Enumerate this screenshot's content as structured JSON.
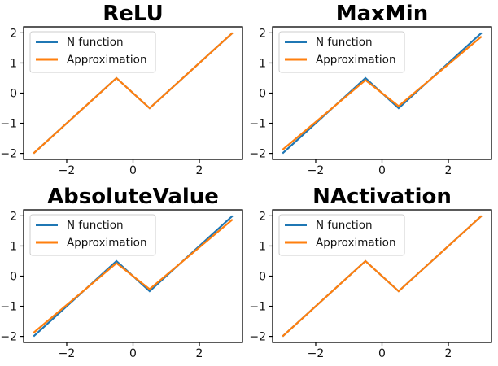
{
  "figure": {
    "background": "#ffffff",
    "rows": 2,
    "cols": 2
  },
  "colors": {
    "n_function": "#1f77b4",
    "approximation": "#ff7f0e",
    "axis": "#000000",
    "tick_text": "#111111",
    "legend_border": "#cccccc",
    "legend_fill": "rgba(255,255,255,0.8)"
  },
  "chart_data": [
    {
      "type": "line",
      "title": "ReLU",
      "xlabel": "",
      "ylabel": "",
      "xlim": [
        -3.3,
        3.3
      ],
      "ylim": [
        -2.2,
        2.2
      ],
      "xticks": [
        -2,
        0,
        2
      ],
      "xtick_labels": [
        "−2",
        "0",
        "2"
      ],
      "yticks": [
        -2,
        -1,
        0,
        1,
        2
      ],
      "ytick_labels": [
        "−2",
        "−1",
        "0",
        "1",
        "2"
      ],
      "grid": false,
      "legend": {
        "position": "upper left",
        "entries": [
          "N function",
          "Approximation"
        ]
      },
      "series": [
        {
          "name": "N function",
          "color": "#1f77b4",
          "points": [
            [
              -3,
              -2
            ],
            [
              -0.5,
              0.5
            ],
            [
              0.5,
              -0.5
            ],
            [
              3,
              2
            ]
          ]
        },
        {
          "name": "Approximation",
          "color": "#ff7f0e",
          "points": [
            [
              -3,
              -2
            ],
            [
              -0.5,
              0.5
            ],
            [
              0.5,
              -0.5
            ],
            [
              3,
              2
            ]
          ]
        }
      ]
    },
    {
      "type": "line",
      "title": "MaxMin",
      "xlabel": "",
      "ylabel": "",
      "xlim": [
        -3.3,
        3.3
      ],
      "ylim": [
        -2.2,
        2.2
      ],
      "xticks": [
        -2,
        0,
        2
      ],
      "xtick_labels": [
        "−2",
        "0",
        "2"
      ],
      "yticks": [
        -2,
        -1,
        0,
        1,
        2
      ],
      "ytick_labels": [
        "−2",
        "−1",
        "0",
        "1",
        "2"
      ],
      "grid": false,
      "legend": {
        "position": "upper left",
        "entries": [
          "N function",
          "Approximation"
        ]
      },
      "series": [
        {
          "name": "N function",
          "color": "#1f77b4",
          "points": [
            [
              -3,
              -2
            ],
            [
              -0.5,
              0.5
            ],
            [
              0.5,
              -0.5
            ],
            [
              3,
              2
            ]
          ]
        },
        {
          "name": "Approximation",
          "color": "#ff7f0e",
          "points": [
            [
              -3,
              -1.88
            ],
            [
              -0.5,
              0.43
            ],
            [
              0.5,
              -0.43
            ],
            [
              3,
              1.88
            ]
          ]
        }
      ]
    },
    {
      "type": "line",
      "title": "AbsoluteValue",
      "xlabel": "",
      "ylabel": "",
      "xlim": [
        -3.3,
        3.3
      ],
      "ylim": [
        -2.2,
        2.2
      ],
      "xticks": [
        -2,
        0,
        2
      ],
      "xtick_labels": [
        "−2",
        "0",
        "2"
      ],
      "yticks": [
        -2,
        -1,
        0,
        1,
        2
      ],
      "ytick_labels": [
        "−2",
        "−1",
        "0",
        "1",
        "2"
      ],
      "grid": false,
      "legend": {
        "position": "upper left",
        "entries": [
          "N function",
          "Approximation"
        ]
      },
      "series": [
        {
          "name": "N function",
          "color": "#1f77b4",
          "points": [
            [
              -3,
              -2
            ],
            [
              -0.5,
              0.5
            ],
            [
              0.5,
              -0.5
            ],
            [
              3,
              2
            ]
          ]
        },
        {
          "name": "Approximation",
          "color": "#ff7f0e",
          "points": [
            [
              -3,
              -1.88
            ],
            [
              -0.5,
              0.43
            ],
            [
              0.5,
              -0.43
            ],
            [
              3,
              1.88
            ]
          ]
        }
      ]
    },
    {
      "type": "line",
      "title": "NActivation",
      "xlabel": "",
      "ylabel": "",
      "xlim": [
        -3.3,
        3.3
      ],
      "ylim": [
        -2.2,
        2.2
      ],
      "xticks": [
        -2,
        0,
        2
      ],
      "xtick_labels": [
        "−2",
        "0",
        "2"
      ],
      "yticks": [
        -2,
        -1,
        0,
        1,
        2
      ],
      "ytick_labels": [
        "−2",
        "−1",
        "0",
        "1",
        "2"
      ],
      "grid": false,
      "legend": {
        "position": "upper left",
        "entries": [
          "N function",
          "Approximation"
        ]
      },
      "series": [
        {
          "name": "N function",
          "color": "#1f77b4",
          "points": [
            [
              -3,
              -2
            ],
            [
              -0.5,
              0.5
            ],
            [
              0.5,
              -0.5
            ],
            [
              3,
              2
            ]
          ]
        },
        {
          "name": "Approximation",
          "color": "#ff7f0e",
          "points": [
            [
              -3,
              -2
            ],
            [
              -0.5,
              0.5
            ],
            [
              0.5,
              -0.5
            ],
            [
              3,
              2
            ]
          ]
        }
      ]
    }
  ]
}
